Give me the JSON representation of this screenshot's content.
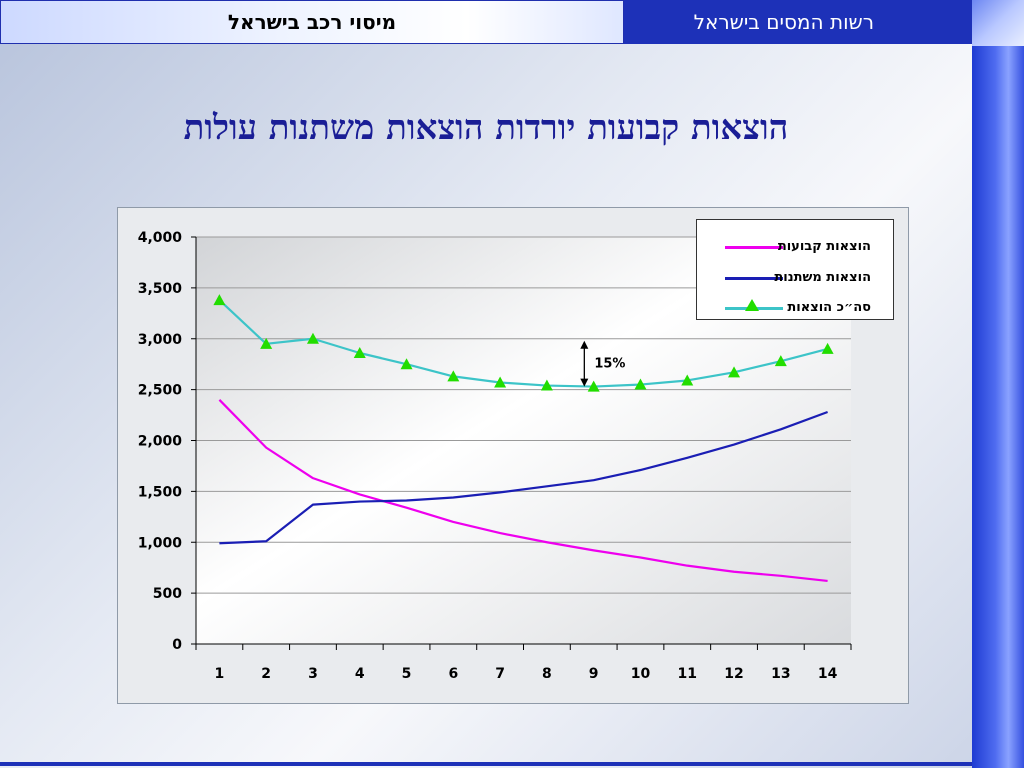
{
  "header": {
    "subject_title": "מיסוי רכב בישראל",
    "org_name": "רשות המסים בישראל"
  },
  "slide": {
    "title": "הוצאות קבועות יורדות הוצאות משתנות עולות"
  },
  "colors": {
    "header_blue": "#1d31b8",
    "title_blue": "#1a1e96",
    "fixed_series": "#ee00ee",
    "variable_series": "#1a1eb4",
    "total_series": "#3cc4c8",
    "total_marker": "#22dd00"
  },
  "chart_data": {
    "type": "line",
    "x": [
      1,
      2,
      3,
      4,
      5,
      6,
      7,
      8,
      9,
      10,
      11,
      12,
      13,
      14
    ],
    "ylim": [
      0,
      4000
    ],
    "yticks": [
      0,
      500,
      1000,
      1500,
      2000,
      2500,
      3000,
      3500,
      4000
    ],
    "ytick_labels": [
      "0",
      "500",
      "1,000",
      "1,500",
      "2,000",
      "2,500",
      "3,000",
      "3,500",
      "4,000"
    ],
    "grid": true,
    "legend_position": "top-right",
    "series": [
      {
        "name": "הוצאות קבועות",
        "color": "#ee00ee",
        "marker": "none",
        "values": [
          2400,
          1930,
          1630,
          1470,
          1340,
          1200,
          1090,
          1000,
          920,
          850,
          770,
          710,
          670,
          620
        ]
      },
      {
        "name": "הוצאות משתנות",
        "color": "#1a1eb4",
        "marker": "none",
        "values": [
          990,
          1010,
          1370,
          1400,
          1410,
          1440,
          1490,
          1550,
          1610,
          1710,
          1830,
          1960,
          2110,
          2280
        ]
      },
      {
        "name": "סה״כ הוצאות",
        "color": "#3cc4c8",
        "marker": "triangle",
        "values": [
          3380,
          2950,
          3000,
          2860,
          2750,
          2630,
          2570,
          2540,
          2530,
          2550,
          2590,
          2670,
          2780,
          2900
        ]
      }
    ],
    "annotations": [
      {
        "text": "15%",
        "type": "double-arrow",
        "x": 8.8,
        "from": 2530,
        "to": 2980
      }
    ]
  }
}
